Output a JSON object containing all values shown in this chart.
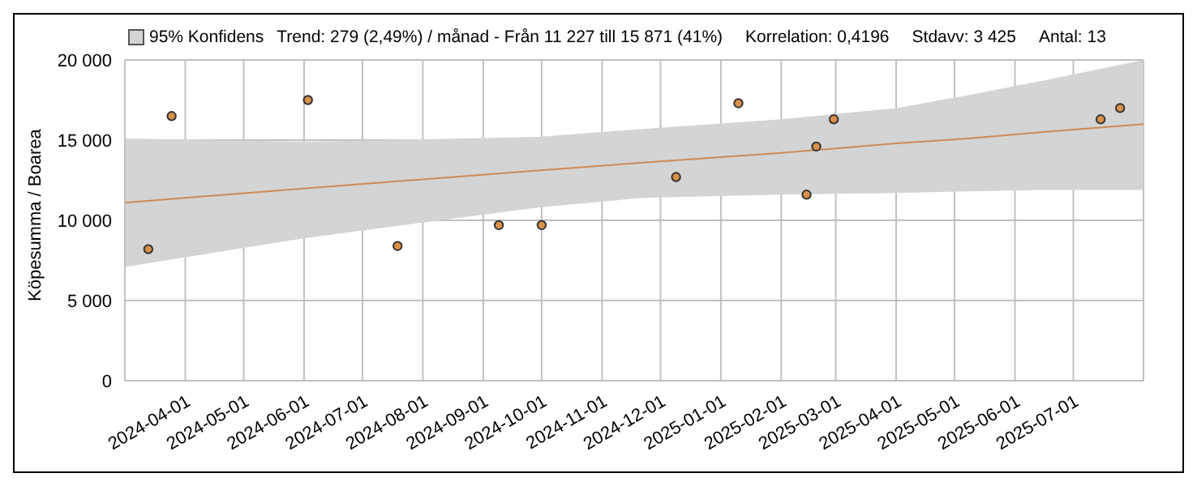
{
  "chart_data": {
    "type": "scatter",
    "ylabel": "Köpesumma / Boarea",
    "annotations": [
      "Trend: 279 (2,49%) / månad  -  Från 11 227 till 15 871 (41%)",
      "Korrelation: 0,4196",
      "Stdavv: 3 425",
      "Antal: 13"
    ],
    "x": [
      "2024-03-13",
      "2024-03-25",
      "2024-06-03",
      "2024-07-19",
      "2024-09-09",
      "2024-10-01",
      "2024-12-09",
      "2025-01-10",
      "2025-02-14",
      "2025-02-19",
      "2025-02-28",
      "2025-07-15",
      "2025-07-25"
    ],
    "series": [
      {
        "color": "#d9904a",
        "marker": "circle",
        "values": [
          8200,
          16500,
          17500,
          8400,
          9700,
          9700,
          12700,
          17300,
          11600,
          14600,
          16300,
          16300,
          17000
        ]
      },
      {
        "type": "line",
        "name": "95% Konfidens",
        "color": "#d08a55",
        "x": [
          "2024-03-01",
          "2024-06-02",
          "2024-09-29",
          "2024-11-22",
          "2025-02-01",
          "2025-04-01",
          "2025-05-08",
          "2025-06-15",
          "2025-08-06"
        ],
        "values": [
          11100,
          12000,
          13100,
          13600,
          14200,
          14800,
          15100,
          15500,
          16000
        ],
        "lower": [
          7100,
          8900,
          10800,
          11400,
          11600,
          11700,
          11800,
          11900,
          11900
        ],
        "upper": [
          15100,
          14900,
          15200,
          15700,
          16300,
          17000,
          17800,
          18700,
          20000
        ]
      }
    ],
    "xlim": [
      "2024-03-01",
      "2025-08-06"
    ],
    "xticks": [
      "2024-04-01",
      "2024-05-01",
      "2024-06-01",
      "2024-07-01",
      "2024-08-01",
      "2024-09-01",
      "2024-10-01",
      "2024-11-01",
      "2024-12-01",
      "2025-01-01",
      "2025-02-01",
      "2025-03-01",
      "2025-04-01",
      "2025-05-01",
      "2025-06-01",
      "2025-07-01"
    ],
    "ylim": [
      0,
      20000
    ],
    "yticks": [
      {
        "value": 0,
        "label": "0"
      },
      {
        "value": 5000,
        "label": "5 000"
      },
      {
        "value": 10000,
        "label": "10 000"
      },
      {
        "value": 15000,
        "label": "15 000"
      },
      {
        "value": 20000,
        "label": "20 000"
      }
    ],
    "grid": true,
    "legend": "top left"
  }
}
